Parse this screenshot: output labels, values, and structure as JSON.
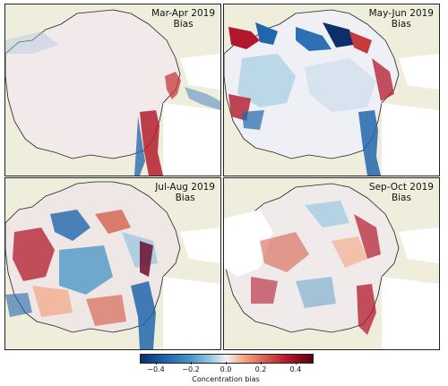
{
  "panels": [
    {
      "period": "Mar-Apr 2019",
      "label": "Bias"
    },
    {
      "period": "May-Jun 2019",
      "label": "Bias"
    },
    {
      "period": "Jul-Aug 2019",
      "label": "Bias"
    },
    {
      "period": "Sep-Oct 2019",
      "label": "Bias"
    }
  ],
  "colorbar": {
    "label": "Concentration bias",
    "ticks": [
      "−0.4",
      "−0.2",
      "0.0",
      "0.2",
      "0.4"
    ],
    "colormap": "RdBu_r"
  },
  "colors": {
    "land": "#efeedd",
    "ocean": "#ffffff",
    "neutral_ice": "#f2eaea",
    "negative": "#2166ac",
    "positive": "#b2182b"
  }
}
